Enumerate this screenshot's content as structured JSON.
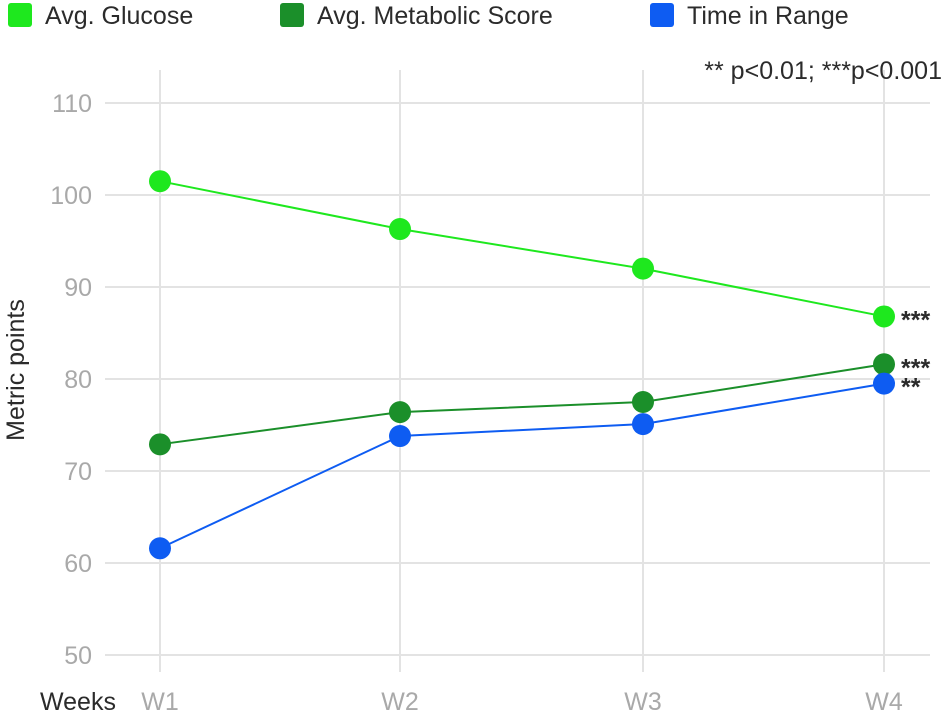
{
  "chart_data": {
    "type": "line",
    "categories": [
      "W1",
      "W2",
      "W3",
      "W4"
    ],
    "series": [
      {
        "name": "Avg. Glucose",
        "color": "#1ee81e",
        "values": [
          101.5,
          96.3,
          92.0,
          86.8
        ],
        "markers": [
          "",
          "",
          "",
          "***"
        ]
      },
      {
        "name": "Avg. Metabolic Score",
        "color": "#1b8f2a",
        "values": [
          72.9,
          76.4,
          77.5,
          81.6
        ],
        "markers": [
          "",
          "",
          "",
          "***"
        ]
      },
      {
        "name": "Time in Range",
        "color": "#0e5cf2",
        "values": [
          61.6,
          73.8,
          75.1,
          79.5
        ],
        "markers": [
          "",
          "",
          "",
          "**"
        ]
      }
    ],
    "ylabel": "Metric points",
    "xlabel": "Weeks",
    "ylim": [
      50,
      110
    ],
    "yticks": [
      50,
      60,
      70,
      80,
      90,
      100,
      110
    ],
    "grid": true,
    "legend_position": "top",
    "annotation": "** p<0.01; ***p<0.001"
  }
}
